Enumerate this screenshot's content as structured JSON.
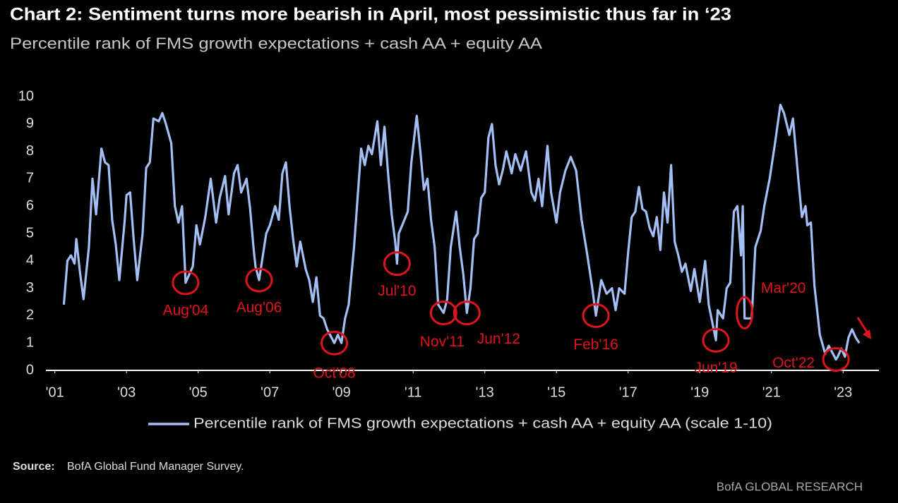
{
  "chart_data": {
    "type": "line",
    "title": "Chart 2: Sentiment turns more bearish in April, most pessimistic thus far in ‘23",
    "subtitle": "Percentile rank of FMS growth expectations + cash AA + equity AA",
    "x": [
      2001.25,
      2001.35,
      2001.45,
      2001.55,
      2001.6,
      2001.7,
      2001.8,
      2001.95,
      2002.05,
      2002.15,
      2002.3,
      2002.4,
      2002.5,
      2002.6,
      2002.7,
      2002.8,
      2002.95,
      2003.0,
      2003.1,
      2003.2,
      2003.3,
      2003.45,
      2003.55,
      2003.65,
      2003.75,
      2003.9,
      2004.0,
      2004.1,
      2004.25,
      2004.35,
      2004.45,
      2004.55,
      2004.65,
      2004.85,
      2004.95,
      2005.05,
      2005.2,
      2005.35,
      2005.5,
      2005.6,
      2005.75,
      2005.85,
      2006.0,
      2006.1,
      2006.2,
      2006.35,
      2006.45,
      2006.55,
      2006.6,
      2006.7,
      2006.9,
      2007.0,
      2007.15,
      2007.25,
      2007.35,
      2007.45,
      2007.55,
      2007.65,
      2007.75,
      2007.85,
      2008.0,
      2008.1,
      2008.2,
      2008.3,
      2008.4,
      2008.5,
      2008.6,
      2008.8,
      2008.9,
      2009.0,
      2009.1,
      2009.2,
      2009.35,
      2009.45,
      2009.55,
      2009.65,
      2009.75,
      2009.85,
      2010.0,
      2010.1,
      2010.2,
      2010.3,
      2010.4,
      2010.5,
      2010.55,
      2010.6,
      2010.85,
      2010.95,
      2011.1,
      2011.2,
      2011.3,
      2011.4,
      2011.5,
      2011.6,
      2011.7,
      2011.85,
      2011.95,
      2012.05,
      2012.2,
      2012.3,
      2012.4,
      2012.5,
      2012.6,
      2012.7,
      2012.8,
      2012.9,
      2013.0,
      2013.1,
      2013.2,
      2013.3,
      2013.4,
      2013.5,
      2013.6,
      2013.75,
      2013.85,
      2014.0,
      2014.15,
      2014.3,
      2014.4,
      2014.5,
      2014.6,
      2014.75,
      2014.85,
      2015.0,
      2015.1,
      2015.25,
      2015.4,
      2015.55,
      2015.7,
      2015.85,
      2016.0,
      2016.1,
      2016.25,
      2016.4,
      2016.55,
      2016.65,
      2016.75,
      2016.9,
      2017.0,
      2017.1,
      2017.2,
      2017.3,
      2017.4,
      2017.5,
      2017.6,
      2017.7,
      2017.8,
      2017.9,
      2018.0,
      2018.1,
      2018.2,
      2018.3,
      2018.4,
      2018.5,
      2018.6,
      2018.75,
      2018.85,
      2019.0,
      2019.15,
      2019.25,
      2019.45,
      2019.5,
      2019.65,
      2019.75,
      2019.85,
      2019.95,
      2020.05,
      2020.15,
      2020.2,
      2020.25,
      2020.45,
      2020.55,
      2020.7,
      2020.8,
      2020.95,
      2021.1,
      2021.25,
      2021.35,
      2021.5,
      2021.6,
      2021.75,
      2021.85,
      2021.95,
      2022.0,
      2022.1,
      2022.2,
      2022.35,
      2022.5,
      2022.6,
      2022.8,
      2022.85,
      2022.95,
      2023.05,
      2023.15,
      2023.25,
      2023.35,
      2023.45
    ],
    "series": [
      {
        "name": "Percentile rank of FMS growth expectations + cash AA + equity AA (scale 1-10)",
        "color": "#a3bff4",
        "values": [
          2.4,
          4.0,
          4.2,
          3.9,
          4.8,
          3.6,
          2.6,
          4.5,
          7.0,
          5.7,
          8.1,
          7.6,
          7.5,
          5.5,
          4.6,
          3.3,
          5.5,
          6.4,
          6.5,
          4.8,
          3.3,
          5.0,
          7.4,
          7.6,
          9.2,
          9.1,
          9.4,
          9.0,
          8.3,
          6.0,
          5.4,
          6.0,
          3.2,
          3.8,
          5.3,
          4.6,
          5.6,
          7.0,
          5.4,
          6.3,
          7.1,
          5.7,
          7.2,
          7.5,
          6.5,
          7.0,
          5.9,
          4.4,
          3.8,
          3.3,
          5.0,
          5.3,
          6.0,
          5.5,
          7.2,
          7.6,
          6.0,
          4.8,
          3.8,
          4.7,
          3.7,
          3.3,
          2.5,
          3.4,
          2.0,
          1.9,
          1.5,
          1.0,
          1.3,
          1.0,
          1.9,
          2.4,
          4.5,
          6.3,
          8.1,
          7.5,
          8.2,
          7.9,
          9.1,
          7.5,
          8.9,
          7.2,
          5.7,
          4.7,
          3.9,
          5.0,
          5.8,
          7.6,
          9.3,
          8.0,
          6.6,
          7.0,
          5.5,
          4.5,
          2.4,
          2.1,
          2.6,
          4.5,
          5.8,
          4.5,
          3.5,
          2.1,
          3.0,
          4.8,
          5.0,
          6.3,
          6.5,
          8.5,
          9.0,
          7.5,
          6.8,
          7.3,
          8.0,
          7.2,
          7.9,
          7.3,
          8.0,
          6.5,
          6.2,
          7.0,
          6.0,
          8.2,
          6.5,
          5.4,
          6.5,
          7.3,
          7.8,
          7.3,
          5.5,
          4.3,
          3.0,
          2.0,
          3.3,
          2.8,
          3.0,
          2.2,
          3.0,
          2.8,
          4.3,
          5.6,
          5.8,
          6.7,
          5.9,
          5.8,
          5.2,
          4.9,
          5.6,
          4.4,
          6.5,
          5.4,
          7.5,
          4.7,
          4.2,
          3.6,
          3.9,
          2.9,
          3.7,
          2.5,
          4.0,
          2.4,
          1.1,
          2.2,
          1.9,
          3.0,
          3.2,
          5.8,
          6.0,
          4.2,
          6.0,
          1.9,
          1.9,
          4.5,
          5.1,
          6.0,
          7.0,
          8.3,
          9.7,
          9.4,
          8.6,
          9.2,
          7.0,
          5.6,
          6.0,
          5.3,
          5.4,
          3.1,
          1.3,
          0.6,
          0.9,
          0.4,
          0.5,
          0.8,
          0.5,
          1.2,
          1.5,
          1.2,
          1.0
        ]
      }
    ],
    "xlim": [
      2000.75,
      2024
    ],
    "xticks": [
      {
        "value": 2001,
        "label": "'01"
      },
      {
        "value": 2003,
        "label": "'03"
      },
      {
        "value": 2005,
        "label": "'05"
      },
      {
        "value": 2007,
        "label": "'07"
      },
      {
        "value": 2009,
        "label": "'09"
      },
      {
        "value": 2011,
        "label": "'11"
      },
      {
        "value": 2013,
        "label": "'13"
      },
      {
        "value": 2015,
        "label": "'15"
      },
      {
        "value": 2017,
        "label": "'17"
      },
      {
        "value": 2019,
        "label": "'19"
      },
      {
        "value": 2021,
        "label": "'21"
      },
      {
        "value": 2023,
        "label": "'23"
      }
    ],
    "ylim": [
      0,
      10
    ],
    "yticks": [
      0,
      1,
      2,
      3,
      4,
      5,
      6,
      7,
      8,
      9,
      10
    ],
    "grid": false,
    "annotations": [
      {
        "label": "Aug'04",
        "x": 2004.65,
        "y": 3.2
      },
      {
        "label": "Aug'06",
        "x": 2006.7,
        "y": 3.3
      },
      {
        "label": "Oct'08",
        "x": 2008.8,
        "y": 1.0
      },
      {
        "label": "Jul'10",
        "x": 2010.55,
        "y": 3.9
      },
      {
        "label": "Nov'11",
        "x": 2011.85,
        "y": 2.1
      },
      {
        "label": "Jun'12",
        "x": 2012.5,
        "y": 2.1
      },
      {
        "label": "Feb'16",
        "x": 2016.1,
        "y": 2.0
      },
      {
        "label": "Jun'19",
        "x": 2019.45,
        "y": 1.1
      },
      {
        "label": "Mar'20",
        "x": 2020.25,
        "y": 1.9
      },
      {
        "label": "Oct'22",
        "x": 2022.8,
        "y": 0.4
      }
    ],
    "source_label": "Source:",
    "source": "BofA Global Fund Manager Survey.",
    "footer": "BofA GLOBAL RESEARCH"
  }
}
